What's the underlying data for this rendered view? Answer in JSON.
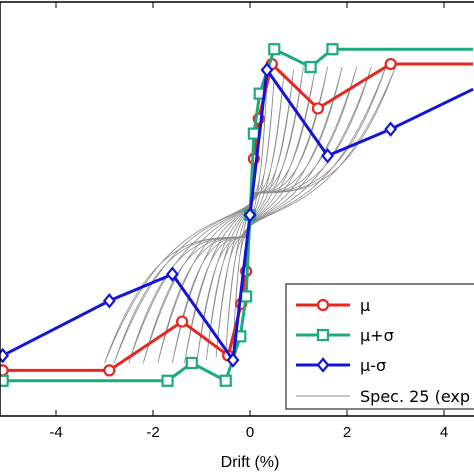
{
  "chart_data": {
    "type": "line",
    "xlabel": "Drift (%)",
    "ylabel": "",
    "title": "",
    "xlim": [
      -5.1,
      4.6
    ],
    "ylim": [
      -1.35,
      1.35
    ],
    "x_ticks": [
      -4,
      -2,
      0,
      2,
      4
    ],
    "x_tick_labels": [
      "-4",
      "-2",
      "0",
      "2",
      "4"
    ],
    "grid": false,
    "legend": "bottom-right",
    "series": [
      {
        "name": "μ",
        "color": "#e8251e",
        "marker": "circle",
        "x": [
          -5.1,
          -2.9,
          -1.4,
          -0.45,
          -0.18,
          -0.08,
          0,
          0.08,
          0.18,
          0.45,
          1.4,
          2.9,
          4.6
        ],
        "y": [
          -1.05,
          -1.05,
          -0.72,
          -0.95,
          -0.6,
          -0.38,
          0,
          0.38,
          0.65,
          1.02,
          0.72,
          1.02,
          1.02
        ]
      },
      {
        "name": "μ+σ",
        "color": "#1dab7c",
        "marker": "square",
        "x": [
          -5.1,
          -1.7,
          -1.2,
          -0.5,
          -0.2,
          -0.08,
          0,
          0.08,
          0.2,
          0.5,
          1.25,
          1.7,
          4.6
        ],
        "y": [
          -1.12,
          -1.12,
          -1.0,
          -1.12,
          -0.82,
          -0.55,
          0,
          0.55,
          0.82,
          1.12,
          1.0,
          1.12,
          1.12
        ]
      },
      {
        "name": "μ-σ",
        "color": "#1414d8",
        "marker": "diamond",
        "x": [
          -5.1,
          -2.9,
          -1.6,
          -0.35,
          0,
          0.35,
          1.6,
          2.9,
          4.6
        ],
        "y": [
          -0.95,
          -0.58,
          -0.4,
          -0.98,
          0,
          0.98,
          0.4,
          0.58,
          0.85
        ]
      },
      {
        "name": "Spec. 25 (exp",
        "color": "#8c8c8c",
        "marker": "none",
        "style": "thin hysteresis loops",
        "amplitudes": [
          0.35,
          0.5,
          0.7,
          0.9,
          1.1,
          1.35,
          1.6,
          1.9,
          2.2,
          2.5,
          2.8,
          3.0
        ],
        "peak_force": [
          0.9,
          0.93,
          0.96,
          0.98,
          1.0,
          1.0,
          1.0,
          1.0,
          1.0,
          1.0,
          1.0,
          1.0
        ],
        "pinch_force": 0.12
      }
    ]
  }
}
